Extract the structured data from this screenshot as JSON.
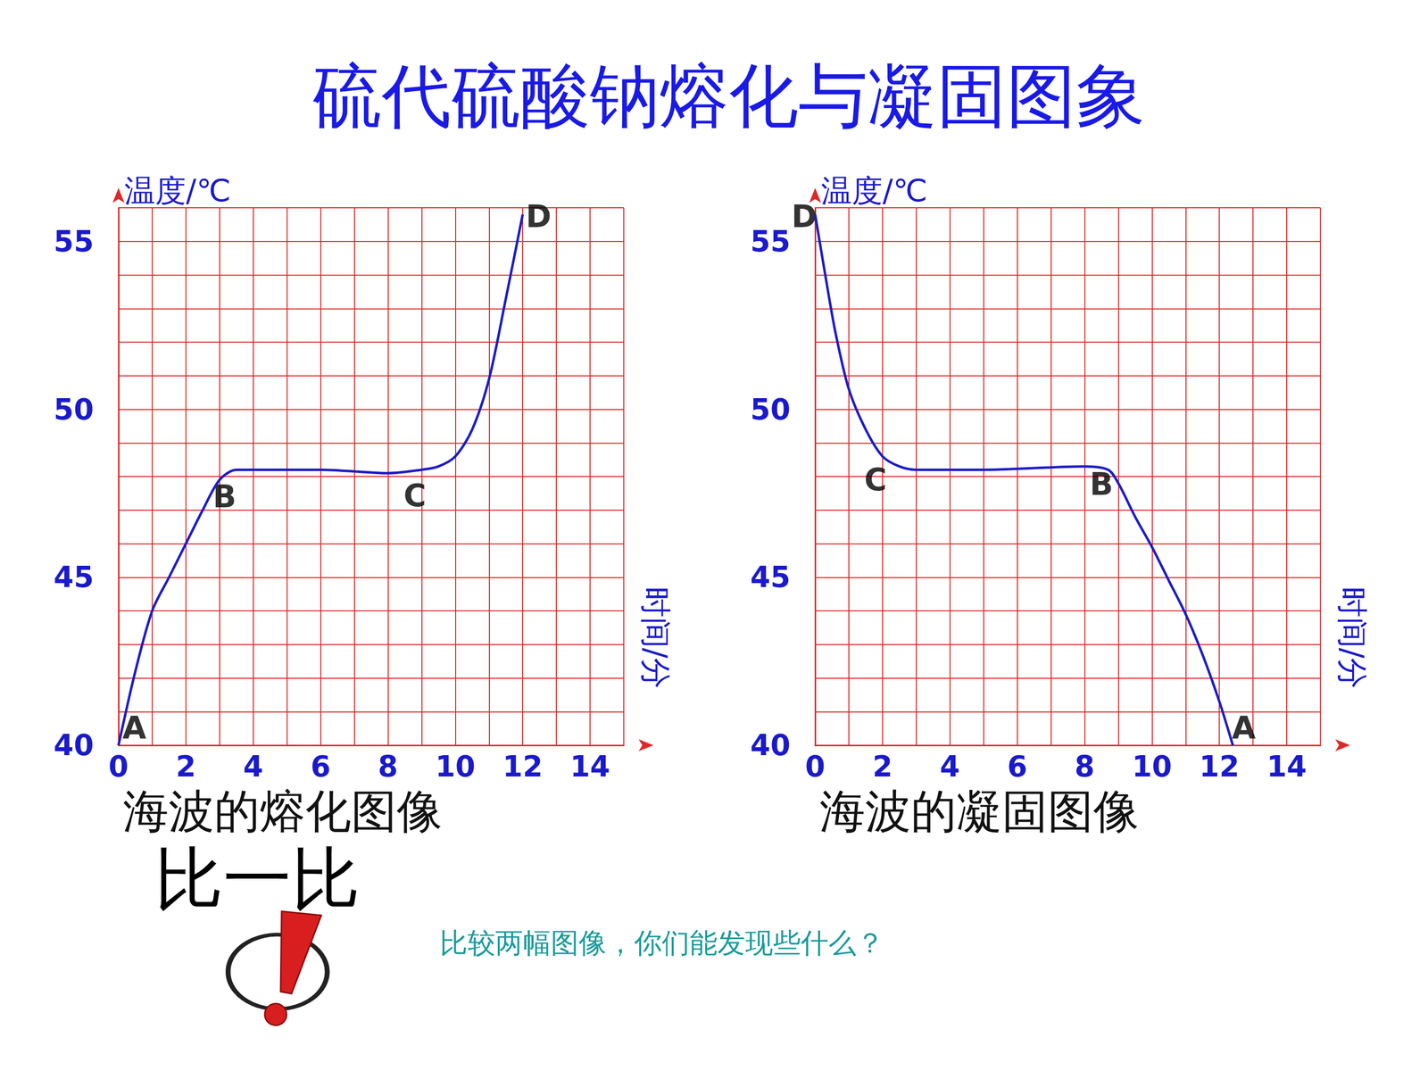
{
  "title": "硫代硫酸钠熔化与凝固图象",
  "chart_data": [
    {
      "type": "line",
      "title": "海波的熔化图像",
      "x_label": "时间/分",
      "y_label": "温度/℃",
      "x": [
        0,
        0.5,
        1,
        1.5,
        2,
        2.5,
        3,
        3.5,
        4,
        6,
        8,
        9,
        9.5,
        10,
        10.5,
        11,
        11.5,
        12
      ],
      "values": [
        40,
        42.2,
        44,
        45,
        46,
        47,
        47.9,
        48.2,
        48.2,
        48.2,
        48.1,
        48.2,
        48.3,
        48.6,
        49.4,
        50.9,
        53.3,
        55.8
      ],
      "color": "#1c1cc8",
      "xlim": [
        0,
        15
      ],
      "ylim": [
        40,
        56
      ],
      "xticks": [
        0,
        2,
        4,
        6,
        8,
        10,
        12,
        14
      ],
      "yticks": [
        40,
        45,
        50,
        55
      ],
      "grid": true,
      "annotations": [
        {
          "text": "A",
          "x": 0,
          "y": 40
        },
        {
          "text": "B",
          "x": 3,
          "y": 48
        },
        {
          "text": "C",
          "x": 8.8,
          "y": 48.2
        },
        {
          "text": "D",
          "x": 12,
          "y": 55.8
        }
      ]
    },
    {
      "type": "line",
      "title": "海波的凝固图像",
      "x_label": "时间/分",
      "y_label": "温度/℃",
      "x": [
        0,
        0.3,
        0.6,
        1,
        1.5,
        2,
        2.5,
        3,
        5,
        8,
        8.7,
        9,
        9.5,
        10,
        10.5,
        11,
        11.5,
        12,
        12.4
      ],
      "values": [
        55.8,
        54,
        52.3,
        50.6,
        49.4,
        48.6,
        48.3,
        48.2,
        48.2,
        48.3,
        48.2,
        47.8,
        46.8,
        45.9,
        44.9,
        43.9,
        42.7,
        41.3,
        40
      ],
      "color": "#1c1cc8",
      "xlim": [
        0,
        15
      ],
      "ylim": [
        40,
        56
      ],
      "xticks": [
        0,
        2,
        4,
        6,
        8,
        10,
        12,
        14
      ],
      "yticks": [
        40,
        45,
        50,
        55
      ],
      "grid": true,
      "annotations": [
        {
          "text": "D",
          "x": 0,
          "y": 55.8
        },
        {
          "text": "C",
          "x": 2,
          "y": 48.4
        },
        {
          "text": "B",
          "x": 8.5,
          "y": 48.3
        },
        {
          "text": "A",
          "x": 12.4,
          "y": 40
        }
      ]
    }
  ],
  "texts": {
    "compare": "比一比",
    "question": "比较两幅图像，你们能发现些什么？"
  }
}
